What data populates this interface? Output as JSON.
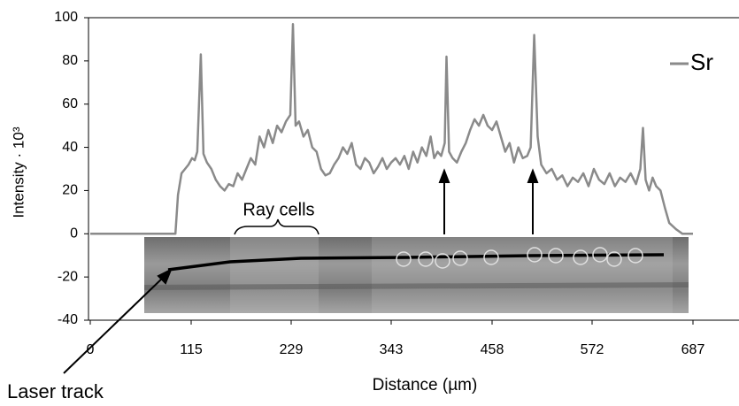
{
  "chart_data": {
    "type": "line",
    "y_label": "Intensity · 10³",
    "x_label": "Distance (µm)",
    "annotations": [
      "Ray cells",
      "Laser track"
    ],
    "x": [
      0,
      90,
      97,
      100,
      104,
      108,
      112,
      116,
      119,
      122,
      126,
      129,
      133,
      138,
      143,
      148,
      153,
      158,
      163,
      168,
      173,
      178,
      183,
      188,
      193,
      198,
      203,
      208,
      213,
      218,
      223,
      228,
      231,
      234,
      238,
      243,
      248,
      253,
      258,
      263,
      268,
      273,
      278,
      283,
      288,
      293,
      298,
      303,
      308,
      313,
      318,
      323,
      328,
      333,
      338,
      343,
      348,
      353,
      358,
      363,
      368,
      373,
      378,
      383,
      388,
      392,
      396,
      400,
      404,
      406,
      409,
      413,
      418,
      423,
      428,
      433,
      438,
      443,
      448,
      453,
      458,
      463,
      468,
      473,
      478,
      483,
      488,
      493,
      498,
      502,
      506,
      510,
      514,
      520,
      526,
      532,
      538,
      544,
      550,
      556,
      562,
      568,
      574,
      580,
      586,
      592,
      598,
      604,
      610,
      616,
      622,
      627,
      630,
      633,
      637,
      641,
      645,
      650,
      655,
      660,
      668,
      675,
      687
    ],
    "series": [
      {
        "name": "Sr",
        "color": "#8a8a8a",
        "values": [
          0,
          0,
          0,
          18,
          28,
          30,
          32,
          35,
          34,
          38,
          83,
          37,
          33,
          30,
          25,
          22,
          20,
          23,
          22,
          28,
          25,
          30,
          35,
          32,
          45,
          40,
          48,
          42,
          50,
          47,
          52,
          55,
          97,
          50,
          52,
          45,
          48,
          40,
          38,
          30,
          27,
          28,
          32,
          35,
          40,
          37,
          42,
          32,
          30,
          35,
          33,
          28,
          31,
          35,
          30,
          33,
          35,
          32,
          36,
          30,
          38,
          33,
          40,
          36,
          45,
          35,
          38,
          36,
          42,
          82,
          38,
          35,
          33,
          38,
          42,
          48,
          53,
          50,
          55,
          50,
          48,
          52,
          45,
          38,
          42,
          33,
          40,
          35,
          36,
          40,
          92,
          45,
          32,
          28,
          30,
          25,
          27,
          22,
          26,
          24,
          28,
          22,
          30,
          25,
          23,
          28,
          22,
          26,
          24,
          28,
          23,
          30,
          49,
          25,
          20,
          26,
          22,
          20,
          12,
          5,
          2,
          0,
          0
        ]
      }
    ],
    "xlim": [
      0,
      687
    ],
    "xticks": [
      0,
      115,
      229,
      343,
      458,
      572,
      687
    ],
    "ylim": [
      -40,
      100
    ],
    "yticks": [
      -40,
      -20,
      0,
      20,
      40,
      60,
      80,
      100
    ],
    "legend": "top-right"
  }
}
